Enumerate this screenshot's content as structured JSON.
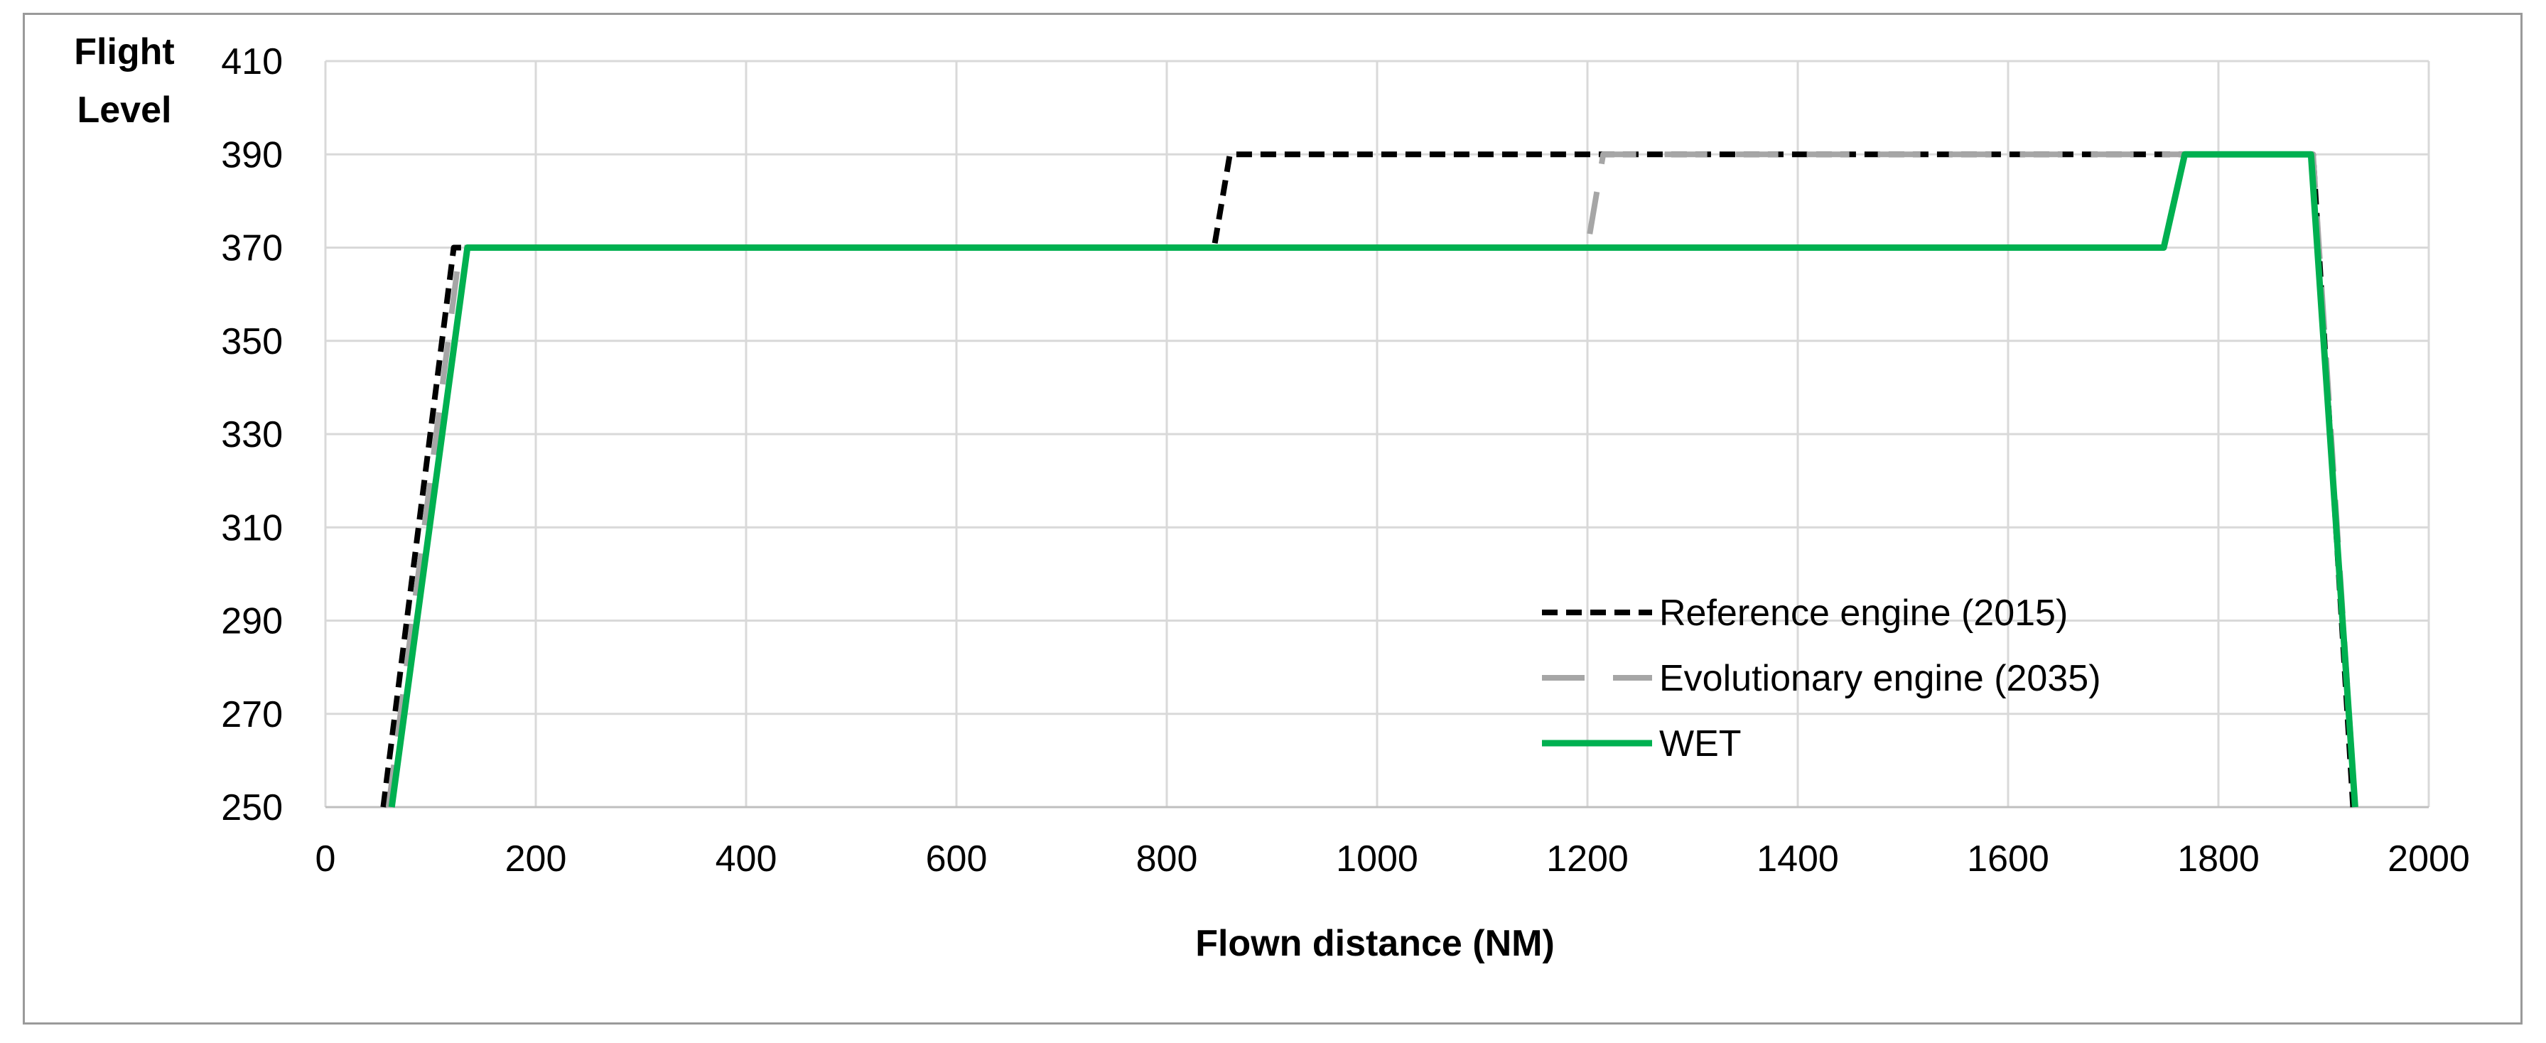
{
  "chart_data": {
    "type": "line",
    "xlabel": "Flown distance (NM)",
    "ylabel_line1": "Flight",
    "ylabel_line2": "Level",
    "xlim": [
      0,
      2000
    ],
    "ylim": [
      250,
      410
    ],
    "xticks": [
      0,
      200,
      400,
      600,
      800,
      1000,
      1200,
      1400,
      1600,
      1800,
      2000
    ],
    "yticks": [
      250,
      270,
      290,
      310,
      330,
      350,
      370,
      390,
      410
    ],
    "grid": true,
    "legend_position": "bottom-right",
    "series": [
      {
        "name": "Reference engine (2015)",
        "color": "#000000",
        "style": "dotted",
        "points": [
          [
            55,
            250
          ],
          [
            122,
            370
          ],
          [
            845,
            370
          ],
          [
            860,
            390
          ],
          [
            1890,
            390
          ],
          [
            1928,
            250
          ]
        ]
      },
      {
        "name": "Evolutionary engine (2035)",
        "color": "#a6a6a6",
        "style": "dashed",
        "points": [
          [
            60,
            250
          ],
          [
            128,
            370
          ],
          [
            1200,
            370
          ],
          [
            1215,
            390
          ],
          [
            1890,
            390
          ],
          [
            1930,
            250
          ]
        ]
      },
      {
        "name": "WET",
        "color": "#00b050",
        "style": "solid",
        "points": [
          [
            63,
            250
          ],
          [
            135,
            370
          ],
          [
            1748,
            370
          ],
          [
            1768,
            390
          ],
          [
            1888,
            390
          ],
          [
            1930,
            250
          ]
        ]
      }
    ]
  }
}
